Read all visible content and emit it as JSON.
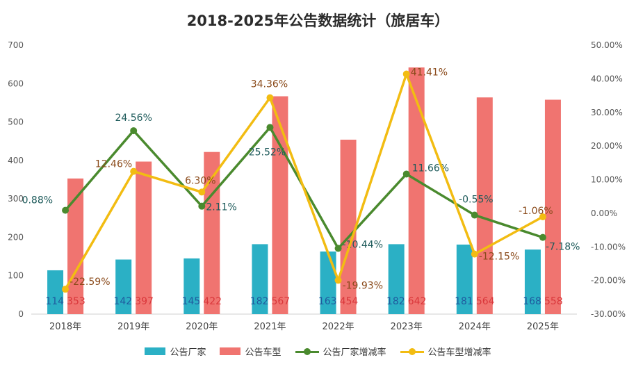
{
  "chart_data": {
    "type": "bar+line",
    "title": "2018-2025年公告数据统计（旅居车）",
    "categories": [
      "2018年",
      "2019年",
      "2020年",
      "2021年",
      "2022年",
      "2023年",
      "2024年",
      "2025年"
    ],
    "y_left": {
      "min": 0,
      "max": 700,
      "step": 100,
      "ticks": [
        "0",
        "100",
        "200",
        "300",
        "400",
        "500",
        "600",
        "700"
      ]
    },
    "y_right": {
      "min": -30,
      "max": 50,
      "step": 10,
      "ticks": [
        "-30.00%",
        "-20.00%",
        "-10.00%",
        "0.00%",
        "10.00%",
        "20.00%",
        "30.00%",
        "40.00%",
        "50.00%"
      ]
    },
    "series": [
      {
        "name": "公告厂家",
        "kind": "bar",
        "axis": "left",
        "color": "#2bb0c5",
        "label_color": "#1f5a9e",
        "values": [
          114,
          142,
          145,
          182,
          163,
          182,
          181,
          168
        ]
      },
      {
        "name": "公告车型",
        "kind": "bar",
        "axis": "left",
        "color": "#f07470",
        "label_color": "#d9363a",
        "values": [
          353,
          397,
          422,
          567,
          454,
          642,
          564,
          558
        ]
      },
      {
        "name": "公告厂家增减率",
        "kind": "line",
        "axis": "right",
        "color": "#4a8a2e",
        "label_color": "#1d5a5a",
        "values": [
          0.88,
          24.56,
          2.11,
          25.52,
          -10.44,
          11.66,
          -0.55,
          -7.18
        ],
        "labels": [
          "0.88%",
          "24.56%",
          "2.11%",
          "25.52%",
          "-10.44%",
          "11.66%",
          "-0.55%",
          "-7.18%"
        ]
      },
      {
        "name": "公告车型增减率",
        "kind": "line",
        "axis": "right",
        "color": "#f2bc12",
        "label_color": "#8a4a1a",
        "values": [
          -22.59,
          12.46,
          6.3,
          34.36,
          -19.93,
          41.41,
          -12.15,
          -1.06
        ],
        "labels": [
          "-22.59%",
          "12.46%",
          "6.30%",
          "34.36%",
          "-19.93%",
          "41.41%",
          "-12.15%",
          "-1.06%"
        ]
      }
    ]
  }
}
